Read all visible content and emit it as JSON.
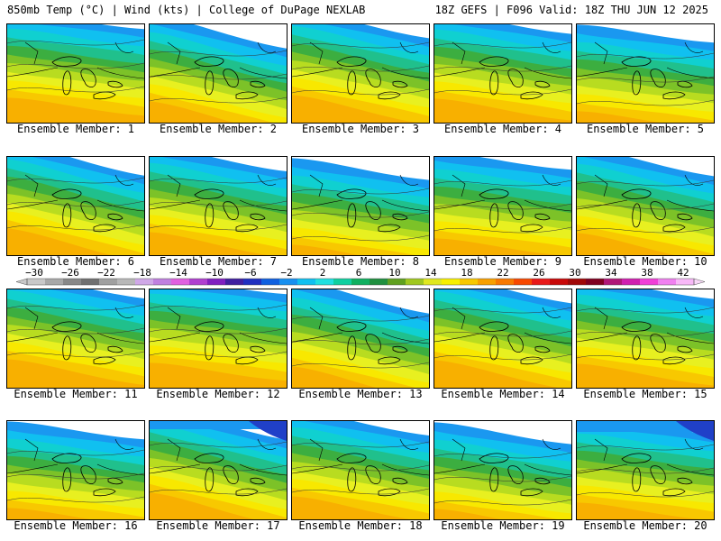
{
  "header": {
    "left": "850mb Temp (°C) | Wind (kts) | College of DuPage NEXLAB",
    "right": "18Z GEFS | F096 Valid: 18Z THU JUN 12 2025"
  },
  "panels": [
    {
      "label": "Ensemble Member: 1"
    },
    {
      "label": "Ensemble Member: 2"
    },
    {
      "label": "Ensemble Member: 3"
    },
    {
      "label": "Ensemble Member: 4"
    },
    {
      "label": "Ensemble Member: 5"
    },
    {
      "label": "Ensemble Member: 6"
    },
    {
      "label": "Ensemble Member: 7"
    },
    {
      "label": "Ensemble Member: 8"
    },
    {
      "label": "Ensemble Member: 9"
    },
    {
      "label": "Ensemble Member: 10"
    },
    {
      "label": "Ensemble Member: 11"
    },
    {
      "label": "Ensemble Member: 12"
    },
    {
      "label": "Ensemble Member: 13"
    },
    {
      "label": "Ensemble Member: 14"
    },
    {
      "label": "Ensemble Member: 15"
    },
    {
      "label": "Ensemble Member: 16"
    },
    {
      "label": "Ensemble Member: 17"
    },
    {
      "label": "Ensemble Member: 18"
    },
    {
      "label": "Ensemble Member: 19"
    },
    {
      "label": "Ensemble Member: 20"
    }
  ],
  "colorbar": {
    "tick_labels": [
      "−30",
      "−26",
      "−22",
      "−18",
      "−14",
      "−10",
      "−6",
      "−2",
      "2",
      "6",
      "10",
      "14",
      "18",
      "22",
      "26",
      "30",
      "34",
      "38",
      "42"
    ],
    "colors": [
      "#c8c8c8",
      "#a8a8a8",
      "#888888",
      "#707070",
      "#a0a0a0",
      "#b8b8b8",
      "#d0a8e8",
      "#c080e0",
      "#e060e0",
      "#b040d0",
      "#8020c0",
      "#4020a0",
      "#2030c0",
      "#1060e0",
      "#1890f0",
      "#10c0f0",
      "#20e0e0",
      "#10d0a0",
      "#10b060",
      "#209040",
      "#60a020",
      "#a0c820",
      "#e0e820",
      "#f8f000",
      "#f8c800",
      "#f8a000",
      "#f87800",
      "#f84800",
      "#e81818",
      "#c80808",
      "#a00808",
      "#800020",
      "#b01878",
      "#d020b0",
      "#f040d8",
      "#f080f0",
      "#f8b8f8"
    ]
  }
}
